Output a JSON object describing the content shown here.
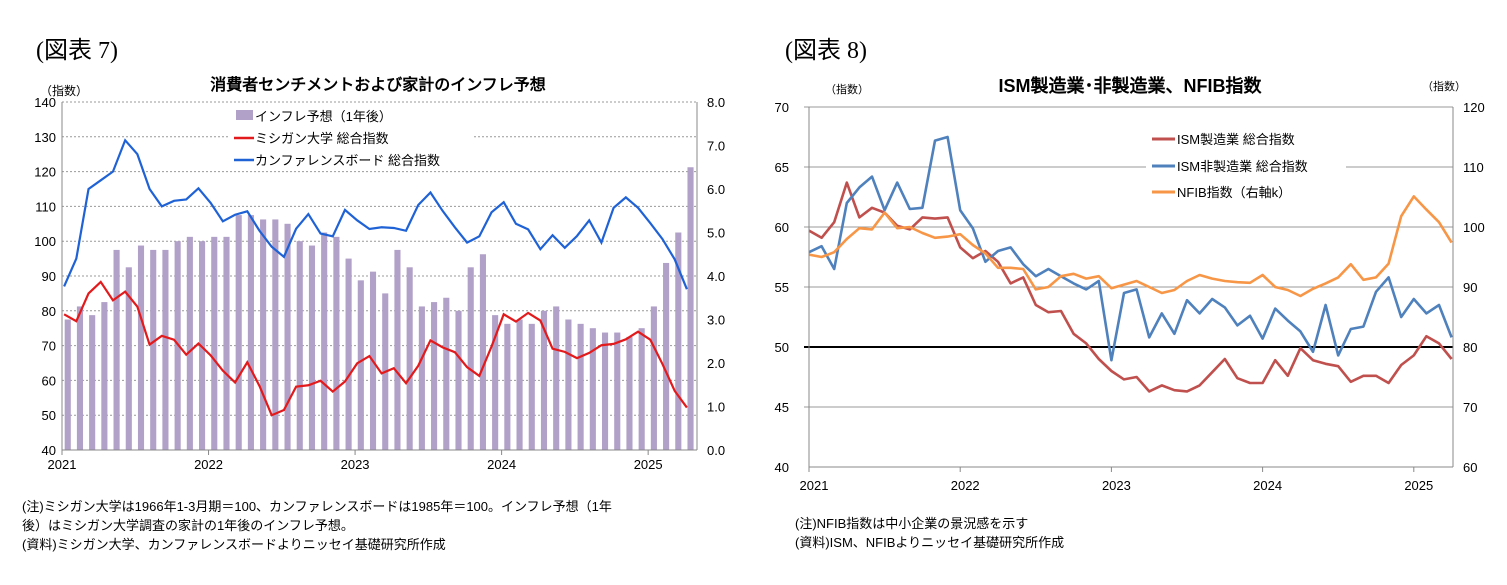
{
  "figure7": {
    "label": "(図表 7)",
    "notes": [
      "(注)ミシガン大学は1966年1-3月期＝100、カンファレンスボードは1985年＝100。インフレ予想（1年",
      "後）はミシガン大学調査の家計の1年後のインフレ予想。",
      "(資料)ミシガン大学、カンファレンスボードよりニッセイ基礎研究所作成"
    ]
  },
  "figure8": {
    "label": "(図表 8)",
    "notes": [
      "(注)NFIB指数は中小企業の景況感を示す",
      "(資料)ISM、NFIBよりニッセイ基礎研究所作成"
    ]
  },
  "chart_data": [
    {
      "type": "bar+line",
      "title": "消費者センチメントおよび家計のインフレ予想",
      "ylabel": "（指数）",
      "ylim": [
        40,
        140
      ],
      "yticks": [
        "140",
        "130",
        "120",
        "110",
        "100",
        "90",
        "80",
        "70",
        "60",
        "50",
        "40"
      ],
      "y2lim": [
        0,
        8
      ],
      "y2ticks": [
        "8.0",
        "7.0",
        "6.0",
        "5.0",
        "4.0",
        "3.0",
        "2.0",
        "1.0",
        "0.0"
      ],
      "x_start": "2021-01",
      "x_end": "2025-04",
      "xticks": [
        "2021",
        "2022",
        "2023",
        "2024",
        "2025"
      ],
      "grid": "dotted horizontal",
      "legend_position": "top-center",
      "series": [
        {
          "name": "インフレ予想（1年後）",
          "kind": "bar",
          "axis": "right",
          "color": "#b1a0c7",
          "values": [
            3.0,
            3.3,
            3.1,
            3.4,
            4.6,
            4.2,
            4.7,
            4.6,
            4.6,
            4.8,
            4.9,
            4.8,
            4.9,
            4.9,
            5.4,
            5.4,
            5.3,
            5.3,
            5.2,
            4.8,
            4.7,
            5.0,
            4.9,
            4.4,
            3.9,
            4.1,
            3.6,
            4.6,
            4.2,
            3.3,
            3.4,
            3.5,
            3.2,
            4.2,
            4.5,
            3.1,
            2.9,
            3.0,
            2.9,
            3.2,
            3.3,
            3.0,
            2.9,
            2.8,
            2.7,
            2.7,
            2.6,
            2.8,
            3.3,
            4.3,
            5.0,
            6.5
          ]
        },
        {
          "name": "ミシガン大学 総合指数",
          "kind": "line",
          "axis": "left",
          "color": "#e31a1c",
          "values": [
            79.0,
            77.0,
            85.0,
            88.3,
            83.0,
            85.5,
            81.2,
            70.3,
            72.8,
            71.7,
            67.4,
            70.6,
            67.2,
            62.8,
            59.4,
            65.2,
            58.4,
            50.0,
            51.5,
            58.2,
            58.6,
            59.9,
            56.8,
            59.7,
            64.9,
            67.0,
            62.0,
            63.5,
            59.2,
            64.2,
            71.5,
            69.5,
            68.1,
            63.8,
            61.3,
            69.7,
            79.0,
            76.9,
            79.4,
            77.2,
            69.1,
            68.2,
            66.4,
            67.9,
            70.1,
            70.5,
            71.8,
            74.0,
            71.7,
            64.7,
            57.0,
            52.2
          ]
        },
        {
          "name": "カンファレンスボード 総合指数",
          "kind": "line",
          "axis": "left",
          "color": "#1f62d6",
          "values": [
            87.0,
            95.0,
            115.0,
            117.5,
            120.0,
            129.0,
            125.0,
            115.0,
            110.0,
            111.6,
            112.0,
            115.2,
            111.0,
            105.7,
            107.6,
            108.6,
            103.0,
            98.4,
            95.5,
            103.6,
            107.8,
            102.2,
            101.4,
            109.0,
            106.0,
            103.5,
            104.0,
            103.8,
            103.0,
            110.4,
            114.0,
            108.7,
            104.0,
            99.6,
            101.4,
            108.3,
            111.2,
            105.0,
            103.4,
            97.7,
            101.7,
            98.1,
            101.5,
            106.0,
            99.6,
            109.6,
            112.6,
            109.6,
            105.2,
            100.6,
            94.8,
            86.2
          ]
        }
      ]
    },
    {
      "type": "line",
      "title": "ISM製造業･非製造業、NFIB指数",
      "ylabel": "（指数）",
      "y2label": "（指数）",
      "ylim": [
        40,
        70
      ],
      "yticks": [
        "70",
        "65",
        "60",
        "55",
        "50",
        "45",
        "40"
      ],
      "y2lim": [
        60,
        120
      ],
      "y2ticks": [
        "120",
        "110",
        "100",
        "90",
        "80",
        "70",
        "60"
      ],
      "reference_line": 50,
      "x_start": "2021-01",
      "x_end": "2025-04",
      "xticks": [
        "2021",
        "2022",
        "2023",
        "2024",
        "2025"
      ],
      "grid": "solid horizontal",
      "legend_position": "top-right",
      "series": [
        {
          "name": "ISM製造業 総合指数",
          "axis": "left",
          "color": "#c0504d",
          "values": [
            59.7,
            59.1,
            60.4,
            63.7,
            60.8,
            61.6,
            61.2,
            60.1,
            59.8,
            60.8,
            60.7,
            60.8,
            58.3,
            57.4,
            58.0,
            57.1,
            55.3,
            55.8,
            53.5,
            52.9,
            53.0,
            51.1,
            50.3,
            49.0,
            48.0,
            47.3,
            47.5,
            46.3,
            46.8,
            46.4,
            46.3,
            46.8,
            47.9,
            49.0,
            47.4,
            47.0,
            47.0,
            48.9,
            47.6,
            49.9,
            48.9,
            48.6,
            48.4,
            47.1,
            47.6,
            47.6,
            47.0,
            48.5,
            49.3,
            50.9,
            50.3,
            49.0
          ]
        },
        {
          "name": "ISM非製造業 総合指数",
          "axis": "left",
          "color": "#4f81bd",
          "values": [
            57.9,
            58.4,
            56.5,
            62.0,
            63.3,
            64.2,
            61.4,
            63.7,
            61.5,
            61.6,
            67.2,
            67.5,
            61.4,
            59.9,
            57.1,
            58.0,
            58.3,
            56.9,
            55.9,
            56.5,
            55.9,
            55.3,
            54.8,
            55.5,
            48.9,
            54.5,
            54.8,
            50.8,
            52.8,
            51.1,
            53.9,
            52.8,
            54.0,
            53.3,
            51.8,
            52.6,
            50.7,
            53.2,
            52.2,
            51.3,
            49.6,
            53.5,
            49.3,
            51.5,
            51.7,
            54.6,
            55.8,
            52.5,
            54.0,
            52.8,
            53.5,
            50.8
          ]
        },
        {
          "name": "NFIB指数（右軸k）",
          "axis": "right",
          "color": "#f79646",
          "values": [
            95.4,
            95.0,
            95.8,
            98.0,
            99.8,
            99.6,
            102.4,
            99.8,
            100.0,
            99.0,
            98.2,
            98.4,
            98.8,
            97.0,
            95.6,
            93.2,
            93.2,
            93.0,
            89.6,
            90.0,
            91.8,
            92.2,
            91.4,
            91.8,
            89.8,
            90.4,
            91.0,
            90.0,
            89.0,
            89.5,
            91.0,
            92.0,
            91.4,
            91.0,
            90.8,
            90.7,
            92.0,
            90.0,
            89.5,
            88.5,
            89.7,
            90.6,
            91.6,
            93.8,
            91.2,
            91.6,
            93.9,
            101.8,
            105.1,
            102.9,
            100.8,
            97.4
          ]
        }
      ]
    }
  ]
}
